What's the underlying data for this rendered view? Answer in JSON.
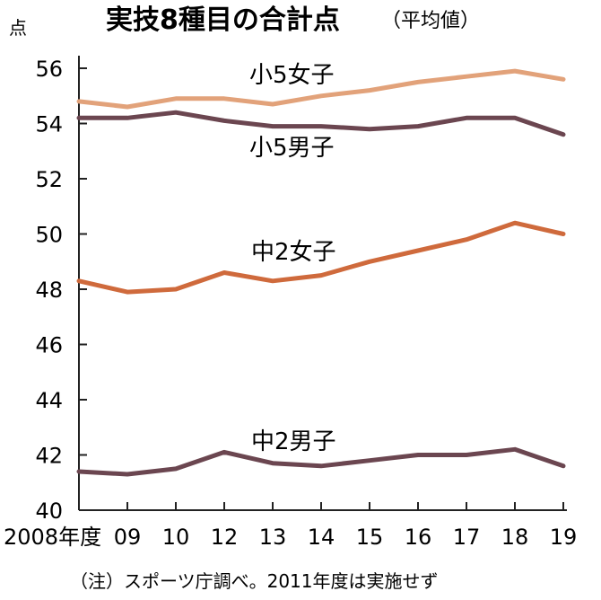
{
  "chart_data": {
    "type": "line",
    "title": "実技8種目の合計点",
    "subtitle": "（平均値）",
    "ylabel": "点",
    "ylim": [
      40,
      56
    ],
    "yticks": [
      40,
      42,
      44,
      46,
      48,
      50,
      52,
      54,
      56
    ],
    "grid": false,
    "x": [
      "2008年度",
      "09",
      "10",
      "12",
      "13",
      "14",
      "15",
      "16",
      "17",
      "18",
      "19"
    ],
    "series": [
      {
        "name": "小5女子",
        "color": "#e2a27a",
        "values": [
          54.8,
          54.6,
          54.9,
          54.9,
          54.7,
          55.0,
          55.2,
          55.5,
          55.7,
          55.9,
          55.6
        ]
      },
      {
        "name": "小5男子",
        "color": "#6b4650",
        "values": [
          54.2,
          54.2,
          54.4,
          54.1,
          53.9,
          53.9,
          53.8,
          53.9,
          54.2,
          54.2,
          53.6
        ]
      },
      {
        "name": "中2女子",
        "color": "#cf6a3c",
        "values": [
          48.3,
          47.9,
          48.0,
          48.6,
          48.3,
          48.5,
          49.0,
          49.4,
          49.8,
          50.4,
          50.0
        ]
      },
      {
        "name": "中2男子",
        "color": "#6b4650",
        "values": [
          41.4,
          41.3,
          41.5,
          42.1,
          41.7,
          41.6,
          41.8,
          42.0,
          42.0,
          42.2,
          41.6
        ]
      }
    ],
    "note": "（注）スポーツ庁調べ。2011年度は実施せず"
  }
}
